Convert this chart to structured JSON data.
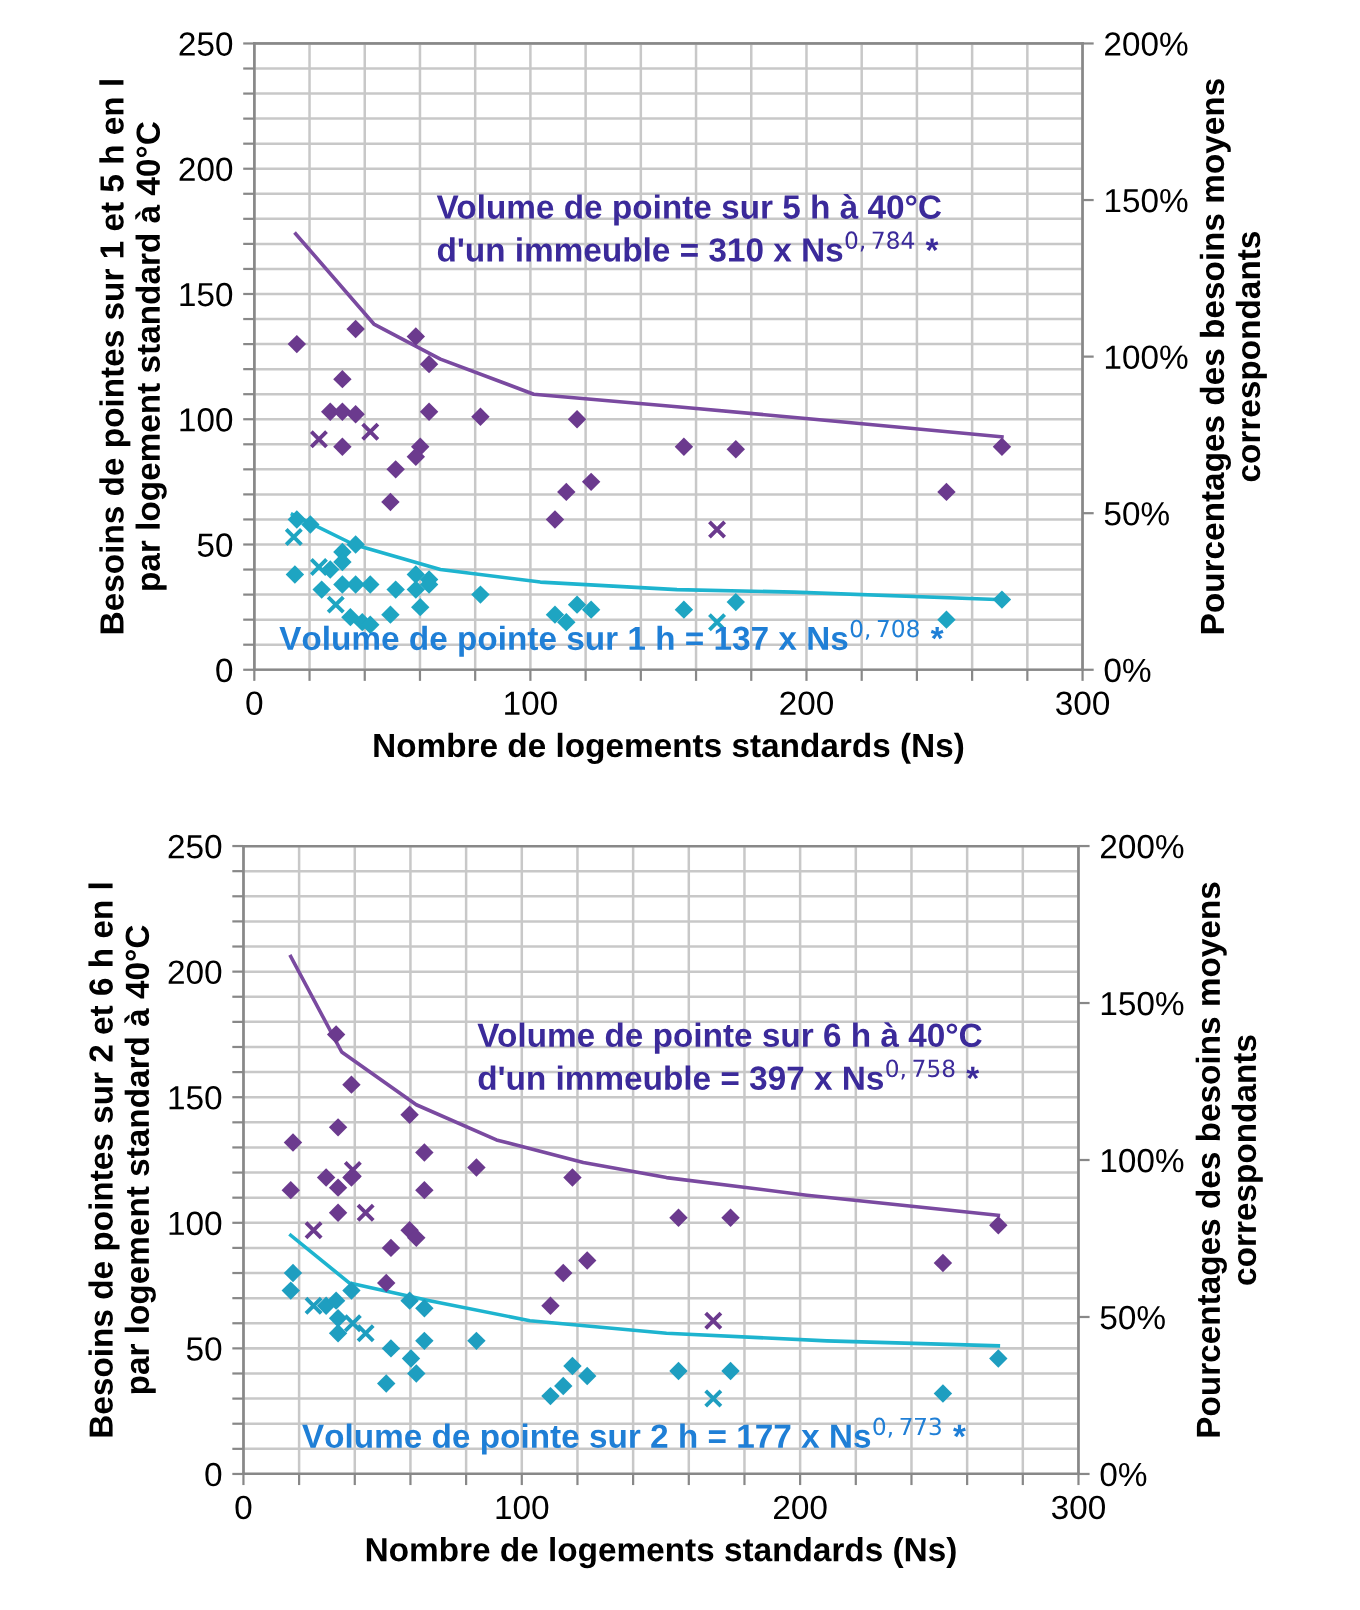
{
  "chart_data": [
    {
      "type": "scatter",
      "xlabel": "Nombre de logements standards (Ns)",
      "ylabel": "Besoins de pointes sur 1 et 5 h en l\npar logement standard à 40°C",
      "y2label": "Pourcentages des besoins moyens\ncorrespondants",
      "marker": "diamond",
      "grid": true,
      "legend": false,
      "xlim": [
        0,
        300
      ],
      "ylim": [
        0,
        250
      ],
      "y2lim": [
        0,
        200
      ],
      "xticks": [
        0,
        {
          "value": 20,
          "label": null
        },
        {
          "value": 40,
          "label": null
        },
        {
          "value": 60,
          "label": null
        },
        {
          "value": 80,
          "label": null
        },
        100,
        {
          "value": 120,
          "label": null
        },
        {
          "value": 140,
          "label": null
        },
        {
          "value": 160,
          "label": null
        },
        {
          "value": 180,
          "label": null
        },
        200,
        {
          "value": 220,
          "label": null
        },
        {
          "value": 240,
          "label": null
        },
        {
          "value": 260,
          "label": null
        },
        {
          "value": 280,
          "label": null
        },
        300
      ],
      "yticks": [
        0,
        {
          "value": 10,
          "label": null
        },
        {
          "value": 20,
          "label": null
        },
        {
          "value": 30,
          "label": null
        },
        {
          "value": 40,
          "label": null
        },
        50,
        {
          "value": 60,
          "label": null
        },
        {
          "value": 70,
          "label": null
        },
        {
          "value": 80,
          "label": null
        },
        {
          "value": 90,
          "label": null
        },
        100,
        {
          "value": 110,
          "label": null
        },
        {
          "value": 120,
          "label": null
        },
        {
          "value": 130,
          "label": null
        },
        {
          "value": 140,
          "label": null
        },
        150,
        {
          "value": 160,
          "label": null
        },
        {
          "value": 170,
          "label": null
        },
        {
          "value": 180,
          "label": null
        },
        {
          "value": 190,
          "label": null
        },
        200,
        {
          "value": 210,
          "label": null
        },
        {
          "value": 220,
          "label": null
        },
        {
          "value": 230,
          "label": null
        },
        {
          "value": 240,
          "label": null
        },
        250
      ],
      "y2ticks": [
        {
          "value": 0,
          "label": "0%"
        },
        {
          "value": 50,
          "label": "50%"
        },
        {
          "value": 100,
          "label": "100%"
        },
        {
          "value": 150,
          "label": "150%"
        },
        {
          "value": 200,
          "label": "200%"
        }
      ],
      "series": [
        {
          "color": "#6b3a8e",
          "x": [
            15.4,
            36.7,
            58.5,
            63.3,
            31.9,
            27.5,
            31.9,
            36.7,
            63.3,
            81.9,
            116.9,
            31.9,
            60.1,
            58.5,
            51.2,
            49.3,
            113,
            122,
            108.9,
            155.6,
            174.4,
            250.7,
            270.8
          ],
          "values": [
            130,
            136,
            133,
            122,
            116,
            103,
            103,
            102,
            103,
            101,
            100,
            89,
            89,
            85,
            80,
            67,
            71,
            75,
            60,
            89,
            88,
            71,
            89
          ]
        },
        {
          "color": "#6b3a8e",
          "marker": "cross",
          "x": [
            23.4,
            42,
            167.6
          ],
          "values": [
            92,
            95,
            56
          ]
        },
        {
          "color": "#1ea5c2",
          "x": [
            15.4,
            20.3,
            14.7,
            31.9,
            31.9,
            36.7,
            27.5,
            24.4,
            31.9,
            36.7,
            42,
            51.2,
            58.5,
            58.5,
            63.3,
            63.3,
            60.1,
            49.3,
            34.8,
            39.1,
            42,
            81.9,
            108.9,
            113,
            116.9,
            122,
            155.6,
            174.4,
            250.7,
            270.8
          ],
          "values": [
            60,
            58,
            38,
            47,
            43,
            50,
            40,
            32,
            34,
            34,
            34,
            32,
            38,
            32,
            36,
            34,
            25,
            22,
            21,
            19,
            18,
            30,
            22,
            19,
            26,
            24,
            24,
            27,
            20,
            28
          ]
        },
        {
          "color": "#1ea5c2",
          "marker": "cross",
          "x": [
            14.3,
            23.4,
            29.5,
            167.6
          ],
          "values": [
            53,
            41,
            26,
            19
          ]
        },
        {
          "type": "line",
          "marker": "none",
          "color": "#7a4aa0",
          "x": [
            15,
            43.3,
            67.4,
            101.2,
            153.1,
            202.7,
            270.8
          ],
          "values": [
            174,
            138,
            124,
            110,
            105,
            100,
            93
          ]
        },
        {
          "type": "line",
          "marker": "none",
          "color": "#1eb4cf",
          "x": [
            13.8,
            36,
            67.4,
            103.6,
            153.1,
            195.4,
            270.8
          ],
          "values": [
            62,
            50,
            40,
            35,
            32,
            31,
            28
          ]
        }
      ],
      "annotations": [
        "Volume de pointe sur 5 h à 40°C\nd'un immeuble = 310 x Ns$^{0,784}$ *",
        "Volume de pointe sur 1 h = 137 x Ns$^{0,708}$ *"
      ]
    },
    {
      "type": "scatter",
      "xlabel": "Nombre de logements standards (Ns)",
      "ylabel": "Besoins de pointes sur 2 et 6 h en l\npar logement standard à 40°C",
      "y2label": "Pourcentages des besoins moyens\ncorrespondants",
      "marker": "diamond",
      "grid": true,
      "legend": false,
      "xlim": [
        0,
        300
      ],
      "ylim": [
        0,
        250
      ],
      "y2lim": [
        0,
        200
      ],
      "xticks": [
        0,
        {
          "value": 20,
          "label": null
        },
        {
          "value": 40,
          "label": null
        },
        {
          "value": 60,
          "label": null
        },
        {
          "value": 80,
          "label": null
        },
        100,
        {
          "value": 120,
          "label": null
        },
        {
          "value": 140,
          "label": null
        },
        {
          "value": 160,
          "label": null
        },
        {
          "value": 180,
          "label": null
        },
        200,
        {
          "value": 220,
          "label": null
        },
        {
          "value": 240,
          "label": null
        },
        {
          "value": 260,
          "label": null
        },
        {
          "value": 280,
          "label": null
        },
        300
      ],
      "yticks": [
        0,
        {
          "value": 10,
          "label": null
        },
        {
          "value": 20,
          "label": null
        },
        {
          "value": 30,
          "label": null
        },
        {
          "value": 40,
          "label": null
        },
        50,
        {
          "value": 60,
          "label": null
        },
        {
          "value": 70,
          "label": null
        },
        {
          "value": 80,
          "label": null
        },
        {
          "value": 90,
          "label": null
        },
        100,
        {
          "value": 110,
          "label": null
        },
        {
          "value": 120,
          "label": null
        },
        {
          "value": 130,
          "label": null
        },
        {
          "value": 140,
          "label": null
        },
        150,
        {
          "value": 160,
          "label": null
        },
        {
          "value": 170,
          "label": null
        },
        {
          "value": 180,
          "label": null
        },
        {
          "value": 190,
          "label": null
        },
        200,
        {
          "value": 210,
          "label": null
        },
        {
          "value": 220,
          "label": null
        },
        {
          "value": 230,
          "label": null
        },
        {
          "value": 240,
          "label": null
        },
        250
      ],
      "y2ticks": [
        {
          "value": 0,
          "label": "0%"
        },
        {
          "value": 50,
          "label": "50%"
        },
        {
          "value": 100,
          "label": "100%"
        },
        {
          "value": 150,
          "label": "150%"
        },
        {
          "value": 200,
          "label": "200%"
        }
      ],
      "series": [
        {
          "color": "#6b3a8e",
          "x": [
            17.8,
            17,
            33.3,
            38.8,
            34,
            29.7,
            34,
            38.8,
            34,
            59.7,
            65,
            65,
            83.7,
            118.2,
            59.7,
            62.1,
            53,
            51.3,
            114.9,
            123.5,
            110.3,
            156.3,
            175,
            251.3,
            271.2
          ],
          "values": [
            132,
            113,
            175,
            155,
            138,
            118,
            114,
            118,
            104,
            143,
            128,
            113,
            122,
            118,
            97,
            94,
            90,
            76,
            80,
            85,
            67,
            102,
            102,
            84,
            99
          ]
        },
        {
          "color": "#6b3a8e",
          "marker": "cross",
          "x": [
            39.3,
            25.2,
            43.9,
            168.8
          ],
          "values": [
            121,
            97,
            104,
            61
          ]
        },
        {
          "color": "#1e9ec0",
          "x": [
            17.8,
            17,
            29.7,
            33.3,
            34,
            38.8,
            34,
            59.7,
            65,
            65,
            83.7,
            53,
            60.2,
            62.1,
            51.3,
            110.3,
            114.9,
            118.2,
            123.5,
            156.3,
            175,
            251.3,
            271.2
          ],
          "values": [
            80,
            73,
            67,
            69,
            62,
            73,
            56,
            69,
            66,
            53,
            53,
            50,
            46,
            40,
            36,
            31,
            35,
            43,
            39,
            41,
            41,
            32,
            46
          ]
        },
        {
          "color": "#1e9ec0",
          "marker": "cross",
          "x": [
            25.2,
            39.3,
            43.9,
            168.8
          ],
          "values": [
            67,
            60,
            56,
            30
          ]
        },
        {
          "type": "line",
          "marker": "none",
          "color": "#7a4aa0",
          "x": [
            17,
            35.3,
            62.1,
            90.9,
            122.1,
            152,
            202.4,
            271.2
          ],
          "values": [
            206,
            168,
            147,
            133,
            124,
            118,
            111,
            103
          ]
        },
        {
          "type": "line",
          "marker": "none",
          "color": "#1eb4cf",
          "x": [
            17,
            38.1,
            66.9,
            102.9,
            152,
            209.6,
            271.2
          ],
          "values": [
            95,
            76,
            69,
            61,
            56,
            53,
            51
          ]
        }
      ],
      "annotations": [
        "Volume de pointe sur 6 h à 40°C\nd'un immeuble = 397 x Ns$^{0,758}$ *",
        "Volume de pointe sur 2 h = 177 x Ns$^{0,773}$ *"
      ]
    }
  ]
}
